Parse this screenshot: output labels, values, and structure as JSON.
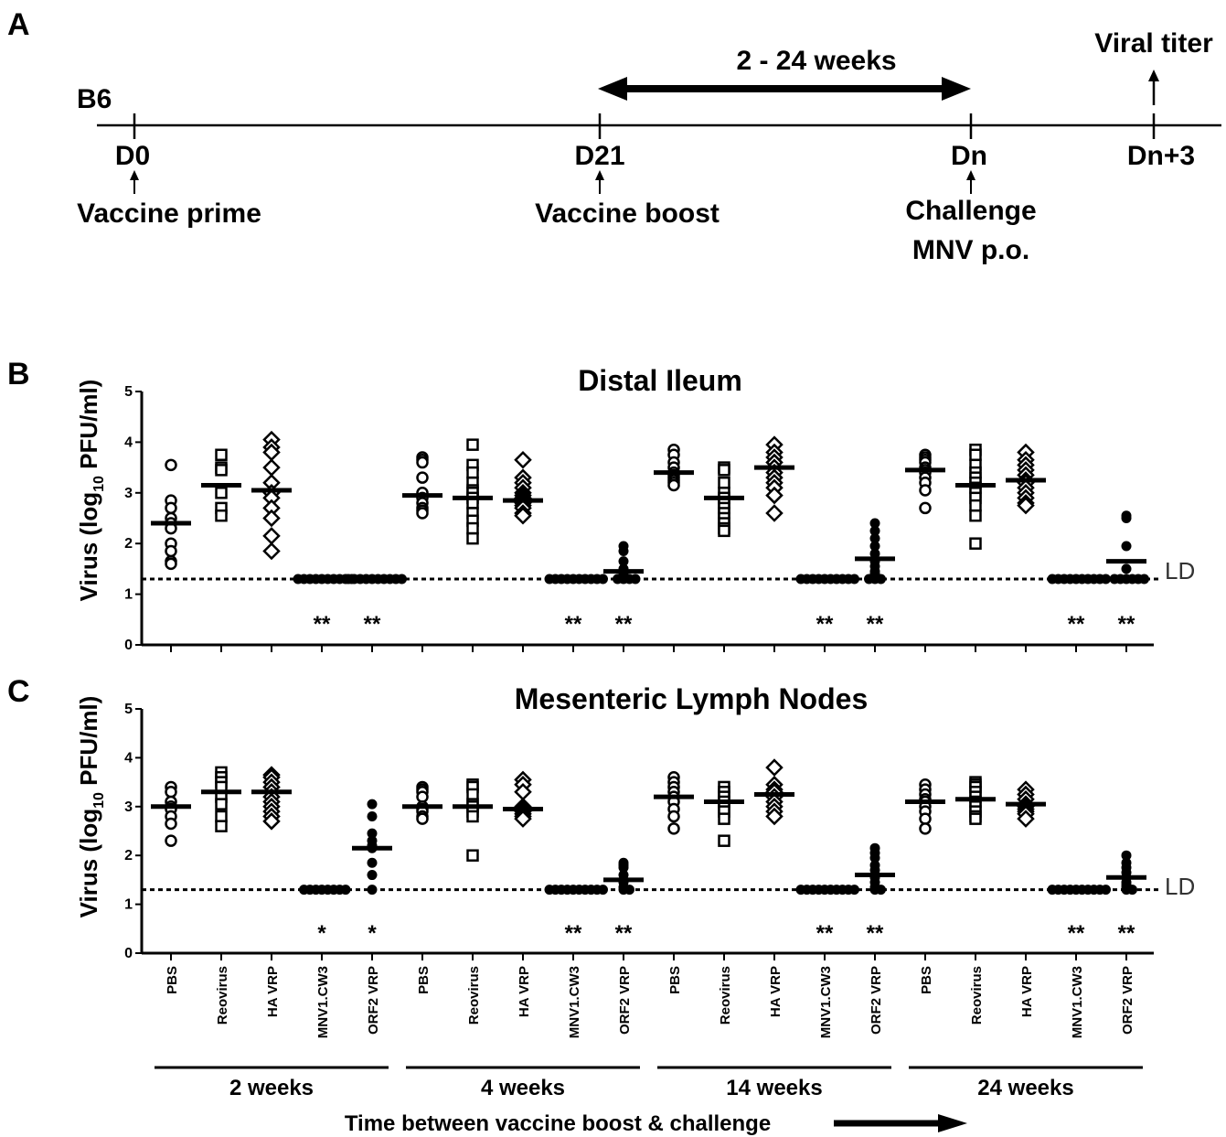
{
  "panel_letters": {
    "a": "A",
    "b": "B",
    "c": "C"
  },
  "timeline": {
    "strain": "B6",
    "interval_label": "2 - 24 weeks",
    "readout_label": "Viral titer",
    "days": [
      "D0",
      "D21",
      "Dn",
      "Dn+3"
    ],
    "events": {
      "prime": "Vaccine prime",
      "boost": "Vaccine boost",
      "challenge_line1": "Challenge",
      "challenge_line2": "MNV p.o."
    }
  },
  "shared": {
    "ylabel_main": "Virus (log",
    "ylabel_sub": "10",
    "ylabel_end": " PFU/ml)",
    "yticks": [
      "0",
      "1",
      "2",
      "3",
      "4",
      "5"
    ],
    "ld_label": "LD",
    "xlabel": "Time between vaccine boost & challenge",
    "groups": [
      "2 weeks",
      "4 weeks",
      "14 weeks",
      "24 weeks"
    ],
    "categories": [
      "PBS",
      "Reovirus",
      "HA VRP",
      "MNV1.CW3",
      "ORF2 VRP",
      "PBS",
      "Reovirus",
      "HA VRP",
      "MNV1.CW3",
      "ORF2 VRP",
      "PBS",
      "Reovirus",
      "HA VRP",
      "MNV1.CW3",
      "ORF2 VRP",
      "PBS",
      "Reovirus",
      "HA VRP",
      "MNV1.CW3",
      "ORF2 VRP"
    ]
  },
  "chart_data": [
    {
      "type": "scatter",
      "title": "Distal Ileum",
      "ylim": [
        0,
        5
      ],
      "limit_of_detection": 1.3,
      "markers": [
        "circle-open",
        "square-open",
        "diamond-open",
        "circle-filled",
        "circle-filled"
      ],
      "means": [
        2.4,
        3.15,
        3.05,
        1.3,
        1.3,
        2.95,
        2.9,
        2.85,
        1.3,
        1.45,
        3.4,
        2.9,
        3.5,
        1.3,
        1.7,
        3.45,
        3.15,
        3.25,
        1.3,
        1.65
      ],
      "significance": [
        "",
        "",
        "",
        "**",
        "**",
        "",
        "",
        "",
        "**",
        "**",
        "",
        "",
        "",
        "**",
        "**",
        "",
        "",
        "",
        "**",
        "**"
      ],
      "points": [
        [
          3.55,
          2.85,
          2.7,
          2.5,
          2.4,
          2.3,
          2.0,
          1.85,
          1.65,
          1.6
        ],
        [
          3.75,
          3.5,
          3.45,
          3.0,
          2.7,
          2.55
        ],
        [
          4.05,
          3.9,
          3.8,
          3.5,
          3.2,
          3.0,
          2.9,
          2.7,
          2.5,
          2.15,
          1.85
        ],
        [
          1.3,
          1.3,
          1.3,
          1.3,
          1.3,
          1.3,
          1.3,
          1.3,
          1.3,
          1.3
        ],
        [
          1.3,
          1.3,
          1.3,
          1.3,
          1.3,
          1.3,
          1.3,
          1.3,
          1.3,
          1.3
        ],
        [
          3.7,
          3.65,
          3.6,
          3.3,
          3.0,
          2.9,
          2.8,
          2.7,
          2.65,
          2.6
        ],
        [
          3.95,
          3.55,
          3.4,
          3.2,
          3.05,
          3.0,
          2.9,
          2.8,
          2.6,
          2.45,
          2.3,
          2.1
        ],
        [
          3.65,
          3.3,
          3.2,
          3.1,
          3.0,
          2.95,
          2.9,
          2.85,
          2.8,
          2.75,
          2.7,
          2.6,
          2.55
        ],
        [
          1.3,
          1.3,
          1.3,
          1.3,
          1.3,
          1.3,
          1.3,
          1.3,
          1.3,
          1.3
        ],
        [
          1.95,
          1.85,
          1.65,
          1.5,
          1.4,
          1.35,
          1.3,
          1.3,
          1.3,
          1.3
        ],
        [
          3.85,
          3.75,
          3.6,
          3.5,
          3.4,
          3.35,
          3.3,
          3.25,
          3.2,
          3.15
        ],
        [
          3.5,
          3.45,
          3.2,
          3.0,
          2.9,
          2.8,
          2.7,
          2.6,
          2.5,
          2.4,
          2.3,
          2.25
        ],
        [
          3.95,
          3.8,
          3.7,
          3.6,
          3.5,
          3.4,
          3.3,
          3.2,
          3.1,
          2.95,
          2.6
        ],
        [
          1.3,
          1.3,
          1.3,
          1.3,
          1.3,
          1.3,
          1.3,
          1.3,
          1.3,
          1.3
        ],
        [
          2.4,
          2.25,
          2.1,
          1.95,
          1.8,
          1.65,
          1.55,
          1.45,
          1.4,
          1.3,
          1.3,
          1.3
        ],
        [
          3.75,
          3.7,
          3.65,
          3.6,
          3.5,
          3.45,
          3.4,
          3.3,
          3.2,
          3.05,
          2.7
        ],
        [
          3.85,
          3.75,
          3.55,
          3.4,
          3.3,
          3.2,
          3.1,
          3.0,
          2.9,
          2.75,
          2.55,
          2.0
        ],
        [
          3.8,
          3.65,
          3.55,
          3.45,
          3.35,
          3.25,
          3.2,
          3.1,
          3.0,
          2.9,
          2.8,
          2.75
        ],
        [
          1.3,
          1.3,
          1.3,
          1.3,
          1.3,
          1.3,
          1.3,
          1.3,
          1.3,
          1.3
        ],
        [
          2.55,
          2.5,
          1.95,
          1.5,
          1.3,
          1.3,
          1.3,
          1.3,
          1.3,
          1.3
        ]
      ]
    },
    {
      "type": "scatter",
      "title": "Mesenteric Lymph Nodes",
      "ylim": [
        0,
        5
      ],
      "limit_of_detection": 1.3,
      "markers": [
        "circle-open",
        "square-open",
        "diamond-open",
        "circle-filled",
        "circle-filled"
      ],
      "means": [
        3.0,
        3.3,
        3.3,
        1.3,
        2.15,
        3.0,
        3.0,
        2.95,
        1.3,
        1.5,
        3.2,
        3.1,
        3.25,
        1.3,
        1.6,
        3.1,
        3.15,
        3.05,
        1.3,
        1.55
      ],
      "significance": [
        "",
        "",
        "",
        "*",
        "*",
        "",
        "",
        "",
        "**",
        "**",
        "",
        "",
        "",
        "**",
        "**",
        "",
        "",
        "",
        "**",
        "**"
      ],
      "points": [
        [
          3.4,
          3.3,
          3.1,
          3.0,
          2.95,
          2.8,
          2.65,
          2.3
        ],
        [
          3.7,
          3.6,
          3.5,
          3.4,
          3.2,
          3.05,
          2.8,
          2.6
        ],
        [
          3.65,
          3.6,
          3.5,
          3.4,
          3.3,
          3.2,
          3.1,
          3.0,
          2.9,
          2.8,
          2.7
        ],
        [
          1.3,
          1.3,
          1.3,
          1.3,
          1.3,
          1.3,
          1.3,
          1.3
        ],
        [
          3.05,
          2.8,
          2.45,
          2.3,
          2.2,
          2.15,
          1.85,
          1.6,
          1.3
        ],
        [
          3.4,
          3.35,
          3.3,
          3.2,
          3.0,
          2.95,
          2.9,
          2.8,
          2.75
        ],
        [
          3.45,
          3.4,
          3.25,
          3.05,
          3.0,
          2.9,
          2.8,
          2.0
        ],
        [
          3.55,
          3.45,
          3.3,
          3.0,
          2.95,
          2.9,
          2.85,
          2.8,
          2.75
        ],
        [
          1.3,
          1.3,
          1.3,
          1.3,
          1.3,
          1.3,
          1.3,
          1.3,
          1.3,
          1.3
        ],
        [
          1.85,
          1.8,
          1.75,
          1.6,
          1.5,
          1.45,
          1.35,
          1.3,
          1.3
        ],
        [
          3.6,
          3.5,
          3.4,
          3.3,
          3.2,
          3.1,
          2.95,
          2.8,
          2.55
        ],
        [
          3.4,
          3.3,
          3.2,
          3.1,
          3.0,
          2.9,
          2.75,
          2.3
        ],
        [
          3.8,
          3.45,
          3.35,
          3.3,
          3.2,
          3.1,
          3.0,
          2.9,
          2.8
        ],
        [
          1.3,
          1.3,
          1.3,
          1.3,
          1.3,
          1.3,
          1.3,
          1.3,
          1.3,
          1.3
        ],
        [
          2.15,
          2.05,
          1.95,
          1.8,
          1.7,
          1.55,
          1.45,
          1.35,
          1.3,
          1.3
        ],
        [
          3.45,
          3.35,
          3.25,
          3.15,
          3.1,
          3.0,
          2.9,
          2.75,
          2.55
        ],
        [
          3.5,
          3.45,
          3.4,
          3.3,
          3.2,
          3.1,
          3.0,
          2.9,
          2.8,
          2.75
        ],
        [
          3.35,
          3.25,
          3.15,
          3.05,
          3.0,
          2.95,
          2.9,
          2.85,
          2.75
        ],
        [
          1.3,
          1.3,
          1.3,
          1.3,
          1.3,
          1.3,
          1.3,
          1.3,
          1.3,
          1.3
        ],
        [
          2.0,
          1.85,
          1.75,
          1.65,
          1.55,
          1.45,
          1.4,
          1.35,
          1.3,
          1.3
        ]
      ]
    }
  ]
}
